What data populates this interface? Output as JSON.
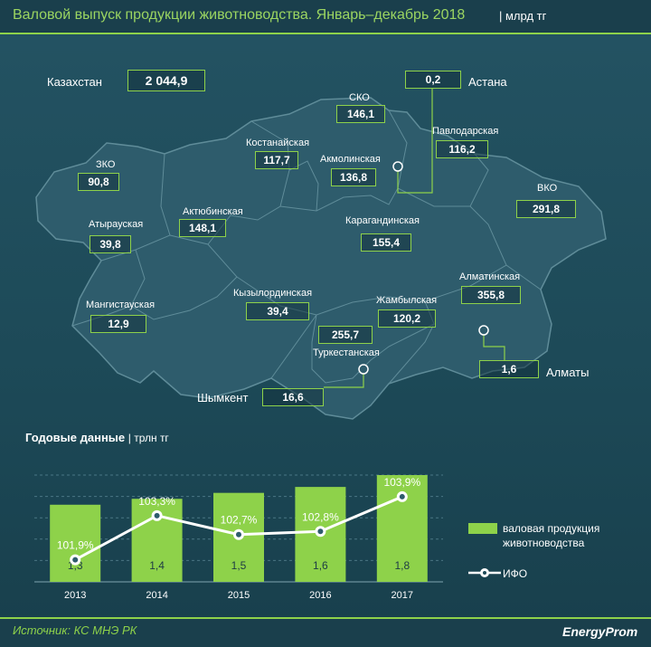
{
  "header": {
    "title": "Валовой выпуск продукции животноводства. Январь–декабрь 2018",
    "unit": "|  млрд тг"
  },
  "map": {
    "total": {
      "label": "Казахстан",
      "value": "2 044,9"
    },
    "regions": [
      {
        "id": "zko",
        "label": "ЗКО",
        "value": "90,8"
      },
      {
        "id": "atyrau",
        "label": "Атырауская",
        "value": "39,8"
      },
      {
        "id": "mangistau",
        "label": "Мангистауская",
        "value": "12,9"
      },
      {
        "id": "aktobe",
        "label": "Актюбинская",
        "value": "148,1"
      },
      {
        "id": "kostanay",
        "label": "Костанайская",
        "value": "117,7"
      },
      {
        "id": "sko",
        "label": "СКО",
        "value": "146,1"
      },
      {
        "id": "akmola",
        "label": "Акмолинская",
        "value": "136,8"
      },
      {
        "id": "astana",
        "label": "Астана",
        "value": "0,2"
      },
      {
        "id": "pavlodar",
        "label": "Павлодарская",
        "value": "116,2"
      },
      {
        "id": "vko",
        "label": "ВКО",
        "value": "291,8"
      },
      {
        "id": "karaganda",
        "label": "Карагандинская",
        "value": "155,4"
      },
      {
        "id": "kyzylorda",
        "label": "Кызылординская",
        "value": "39,4"
      },
      {
        "id": "zhambyl",
        "label": "Жамбылская",
        "value": "120,2"
      },
      {
        "id": "almaty_obl",
        "label": "Алматинская",
        "value": "355,8"
      },
      {
        "id": "turkestan",
        "label": "Туркестанская",
        "value": "255,7"
      },
      {
        "id": "shymkent",
        "label": "Шымкент",
        "value": "16,6"
      },
      {
        "id": "almaty",
        "label": "Алматы",
        "value": "1,6"
      }
    ]
  },
  "chart_section": {
    "title": "Годовые данные",
    "unit": "|  трлн  тг"
  },
  "chart_data": {
    "type": "bar",
    "categories": [
      "2013",
      "2014",
      "2015",
      "2016",
      "2017"
    ],
    "series": [
      {
        "name": "валовая продукция животноводства",
        "type": "bar",
        "values": [
          1.3,
          1.4,
          1.5,
          1.6,
          1.8
        ],
        "labels": [
          "1,3",
          "1,4",
          "1,5",
          "1,6",
          "1,8"
        ],
        "color": "#8ed24a"
      },
      {
        "name": "ИФО",
        "type": "line",
        "values": [
          101.9,
          103.3,
          102.7,
          102.8,
          103.9
        ],
        "labels": [
          "101,9%",
          "103,3%",
          "102,7%",
          "102,8%",
          "103,9%"
        ],
        "color": "#ffffff"
      }
    ],
    "ylim_bars": [
      0,
      1.8
    ],
    "ylim_line": [
      101.2,
      104.3
    ],
    "grid": true,
    "legend_position": "right"
  },
  "legend": {
    "bar_line1": "валовая продукция",
    "bar_line2": "животноводства",
    "line": "ИФО"
  },
  "footer": {
    "source": "Источник: КС МНЭ РК",
    "brand": "EnergyProm"
  },
  "colors": {
    "accent": "#8ed24a",
    "background": "#1d4a58",
    "map_fill": "#2e5c6c"
  }
}
